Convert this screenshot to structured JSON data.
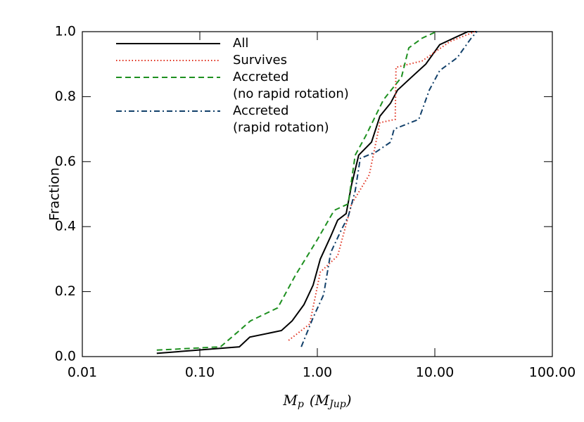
{
  "chart_data": {
    "type": "line",
    "x_label_parts": [
      "M",
      "p",
      "(M",
      "Jup",
      ")"
    ],
    "y_label": "Fraction",
    "xscale": "log",
    "xlim": [
      0.01,
      100
    ],
    "xticks": [
      {
        "value": 0.01,
        "label": "0.01"
      },
      {
        "value": 0.1,
        "label": "0.10"
      },
      {
        "value": 1,
        "label": "1.00"
      },
      {
        "value": 10,
        "label": "10.00"
      },
      {
        "value": 100,
        "label": "100.00"
      }
    ],
    "ylim": [
      0,
      1
    ],
    "yticks": [
      {
        "value": 0,
        "label": "0.0"
      },
      0.2,
      0.4,
      0.6,
      0.8,
      {
        "value": 1,
        "label": "1.0"
      }
    ],
    "legend": "upper-left",
    "series": [
      {
        "name": "All",
        "color": "#000000",
        "dash": "solid",
        "x": [
          0.043,
          0.217,
          0.266,
          0.495,
          0.61,
          0.77,
          0.92,
          1.06,
          1.3,
          1.49,
          1.76,
          1.96,
          2.25,
          2.89,
          3.41,
          4.2,
          4.81,
          6.34,
          8.37,
          11.0,
          14.5,
          19.1,
          22.8
        ],
        "values": [
          0.01,
          0.03,
          0.06,
          0.08,
          0.11,
          0.16,
          0.22,
          0.3,
          0.37,
          0.42,
          0.44,
          0.53,
          0.62,
          0.66,
          0.74,
          0.78,
          0.82,
          0.86,
          0.9,
          0.96,
          0.98,
          1.0,
          1.0
        ]
      },
      {
        "name": "Survives",
        "color": "#e0301e",
        "dash": "dotted",
        "x": [
          0.57,
          0.86,
          1.06,
          1.49,
          1.96,
          2.77,
          3.41,
          4.6,
          4.67,
          7.8,
          13.5,
          21.9
        ],
        "values": [
          0.05,
          0.1,
          0.26,
          0.31,
          0.47,
          0.56,
          0.72,
          0.73,
          0.89,
          0.91,
          0.97,
          1.0
        ]
      },
      {
        "name": "Accreted\n(no rapid rotation)",
        "color": "#1e9020",
        "dash": "dashed",
        "x": [
          0.043,
          0.15,
          0.217,
          0.27,
          0.46,
          0.65,
          1.0,
          1.39,
          1.83,
          2.1,
          2.59,
          3.65,
          5.2,
          6.0,
          7.8,
          10.3
        ],
        "values": [
          0.02,
          0.03,
          0.08,
          0.11,
          0.15,
          0.25,
          0.36,
          0.45,
          0.47,
          0.62,
          0.68,
          0.79,
          0.86,
          0.95,
          0.98,
          1.0
        ]
      },
      {
        "name": "Accreted\n(rapid rotation)",
        "color": "#12406a",
        "dash": "dashdot",
        "x": [
          0.73,
          0.92,
          1.13,
          1.3,
          1.6,
          1.83,
          2.1,
          2.32,
          3.17,
          4.2,
          4.5,
          7.3,
          8.97,
          11.0,
          15.5,
          20.4,
          22.8
        ],
        "values": [
          0.03,
          0.12,
          0.19,
          0.32,
          0.39,
          0.43,
          0.51,
          0.61,
          0.63,
          0.66,
          0.7,
          0.73,
          0.82,
          0.88,
          0.92,
          0.98,
          1.0
        ]
      }
    ]
  }
}
